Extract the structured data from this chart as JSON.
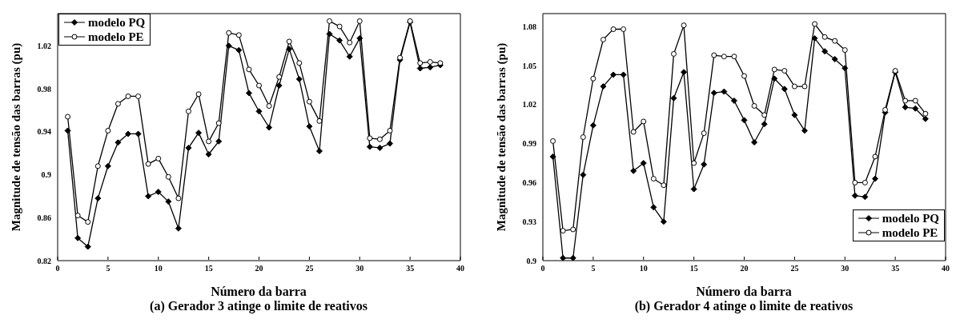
{
  "chart_data": [
    {
      "type": "line",
      "xlabel": "Número da barra",
      "ylabel": "Magnitude de tensão das barras (pu)",
      "annotations": [
        "(a) Gerador 3 atinge o limite de reativos"
      ],
      "x": [
        1,
        2,
        3,
        4,
        5,
        6,
        7,
        8,
        9,
        10,
        11,
        12,
        13,
        14,
        15,
        16,
        17,
        18,
        19,
        20,
        21,
        22,
        23,
        24,
        25,
        26,
        27,
        28,
        29,
        30,
        31,
        32,
        33,
        34,
        35,
        36,
        37,
        38
      ],
      "series": [
        {
          "name": "modelo PQ",
          "color": "#000000",
          "marker": "diamond",
          "values": [
            0.941,
            0.841,
            0.833,
            0.878,
            0.908,
            0.93,
            0.938,
            0.938,
            0.88,
            0.884,
            0.875,
            0.85,
            0.925,
            0.939,
            0.919,
            0.931,
            1.02,
            1.016,
            0.976,
            0.959,
            0.944,
            0.983,
            1.017,
            0.989,
            0.945,
            0.922,
            1.031,
            1.025,
            1.01,
            1.027,
            0.926,
            0.925,
            0.929,
            1.007,
            1.042,
            0.999,
            1.0,
            1.002
          ]
        },
        {
          "name": "modelo PE",
          "color": "#000000",
          "marker": "circle",
          "values": [
            0.954,
            0.862,
            0.856,
            0.908,
            0.941,
            0.966,
            0.973,
            0.973,
            0.91,
            0.915,
            0.898,
            0.878,
            0.959,
            0.975,
            0.931,
            0.948,
            1.032,
            1.03,
            0.998,
            0.983,
            0.964,
            0.991,
            1.024,
            1.004,
            0.968,
            0.95,
            1.043,
            1.038,
            1.023,
            1.043,
            0.934,
            0.933,
            0.941,
            1.009,
            1.043,
            1.004,
            1.005,
            1.004
          ]
        }
      ],
      "xlim": [
        0,
        40
      ],
      "xticks": [
        0,
        5,
        10,
        15,
        20,
        25,
        30,
        35,
        40
      ],
      "ylim": [
        0.82,
        1.05
      ],
      "yticks": [
        0.82,
        0.86,
        0.9,
        0.94,
        0.98,
        1.02
      ],
      "grid": false,
      "legend": "top left",
      "line_style": "solid"
    },
    {
      "type": "line",
      "xlabel": "Número da barra",
      "ylabel": "Magnitude de tensão das barras (pu)",
      "annotations": [
        "(b) Gerador 4 atinge o limite de reativos"
      ],
      "x": [
        1,
        2,
        3,
        4,
        5,
        6,
        7,
        8,
        9,
        10,
        11,
        12,
        13,
        14,
        15,
        16,
        17,
        18,
        19,
        20,
        21,
        22,
        23,
        24,
        25,
        26,
        27,
        28,
        29,
        30,
        31,
        32,
        33,
        34,
        35,
        36,
        37,
        38
      ],
      "series": [
        {
          "name": "modelo PQ",
          "color": "#000000",
          "marker": "diamond",
          "values": [
            0.98,
            0.902,
            0.902,
            0.966,
            1.004,
            1.034,
            1.043,
            1.043,
            0.969,
            0.975,
            0.941,
            0.93,
            1.025,
            1.045,
            0.955,
            0.974,
            1.029,
            1.03,
            1.023,
            1.008,
            0.991,
            1.005,
            1.04,
            1.032,
            1.012,
            1.0,
            1.071,
            1.061,
            1.055,
            1.048,
            0.95,
            0.949,
            0.963,
            1.014,
            1.045,
            1.018,
            1.017,
            1.009
          ]
        },
        {
          "name": "modelo PE",
          "color": "#000000",
          "marker": "circle",
          "values": [
            0.992,
            0.923,
            0.924,
            0.995,
            1.04,
            1.07,
            1.078,
            1.078,
            0.999,
            1.007,
            0.963,
            0.958,
            1.059,
            1.081,
            0.975,
            0.998,
            1.058,
            1.057,
            1.057,
            1.042,
            1.019,
            1.012,
            1.047,
            1.046,
            1.034,
            1.034,
            1.082,
            1.072,
            1.069,
            1.062,
            0.96,
            0.96,
            0.98,
            1.016,
            1.046,
            1.023,
            1.023,
            1.013
          ]
        }
      ],
      "xlim": [
        0,
        40
      ],
      "xticks": [
        0,
        5,
        10,
        15,
        20,
        25,
        30,
        35,
        40
      ],
      "ylim": [
        0.9,
        1.09
      ],
      "yticks": [
        0.9,
        0.93,
        0.96,
        0.99,
        1.02,
        1.05,
        1.08
      ],
      "grid": false,
      "legend": "bottom right",
      "line_style": "solid"
    }
  ]
}
